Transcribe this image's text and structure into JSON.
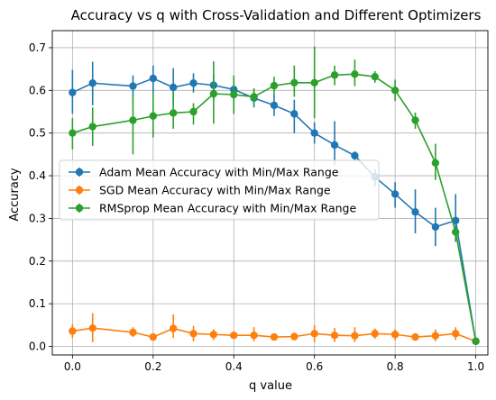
{
  "chart_data": {
    "type": "line",
    "title": "Accuracy vs q with Cross-Validation and Different Optimizers",
    "xlabel": "q value",
    "ylabel": "Accuracy",
    "xlim": [
      -0.05,
      1.03
    ],
    "ylim": [
      -0.02,
      0.74
    ],
    "xticks": [
      0.0,
      0.2,
      0.4,
      0.6,
      0.8,
      1.0
    ],
    "xtick_labels": [
      "0.0",
      "0.2",
      "0.4",
      "0.6",
      "0.8",
      "1.0"
    ],
    "yticks": [
      0.0,
      0.1,
      0.2,
      0.3,
      0.4,
      0.5,
      0.6,
      0.7
    ],
    "ytick_labels": [
      "0.0",
      "0.1",
      "0.2",
      "0.3",
      "0.4",
      "0.5",
      "0.6",
      "0.7"
    ],
    "grid": true,
    "legend_position": "center-left",
    "series": [
      {
        "name": "Adam Mean Accuracy with Min/Max Range",
        "color": "#1f77b4",
        "x": [
          0.0,
          0.05,
          0.15,
          0.2,
          0.25,
          0.3,
          0.35,
          0.4,
          0.45,
          0.5,
          0.55,
          0.6,
          0.65,
          0.7,
          0.75,
          0.8,
          0.85,
          0.9,
          0.95,
          1.0
        ],
        "y": [
          0.595,
          0.617,
          0.61,
          0.628,
          0.607,
          0.617,
          0.612,
          0.602,
          0.582,
          0.565,
          0.545,
          0.5,
          0.472,
          0.447,
          0.397,
          0.357,
          0.315,
          0.28,
          0.295,
          0.012
        ],
        "y_min": [
          0.545,
          0.565,
          0.585,
          0.595,
          0.565,
          0.595,
          0.58,
          0.565,
          0.56,
          0.54,
          0.5,
          0.475,
          0.425,
          0.435,
          0.375,
          0.325,
          0.265,
          0.235,
          0.245,
          0.008
        ],
        "y_max": [
          0.648,
          0.667,
          0.635,
          0.658,
          0.652,
          0.64,
          0.638,
          0.612,
          0.598,
          0.59,
          0.578,
          0.525,
          0.528,
          0.457,
          0.415,
          0.385,
          0.368,
          0.325,
          0.357,
          0.016
        ]
      },
      {
        "name": "SGD Mean Accuracy with Min/Max Range",
        "color": "#ff7f0e",
        "x": [
          0.0,
          0.05,
          0.15,
          0.2,
          0.25,
          0.3,
          0.35,
          0.4,
          0.45,
          0.5,
          0.55,
          0.6,
          0.65,
          0.7,
          0.75,
          0.8,
          0.85,
          0.9,
          0.95,
          1.0
        ],
        "y": [
          0.036,
          0.043,
          0.033,
          0.022,
          0.042,
          0.03,
          0.028,
          0.026,
          0.026,
          0.022,
          0.023,
          0.03,
          0.026,
          0.025,
          0.03,
          0.028,
          0.022,
          0.025,
          0.03,
          0.012
        ],
        "y_min": [
          0.02,
          0.01,
          0.022,
          0.015,
          0.02,
          0.012,
          0.015,
          0.018,
          0.012,
          0.018,
          0.016,
          0.01,
          0.01,
          0.01,
          0.018,
          0.015,
          0.015,
          0.012,
          0.015,
          0.008
        ],
        "y_max": [
          0.052,
          0.078,
          0.045,
          0.03,
          0.075,
          0.048,
          0.04,
          0.034,
          0.045,
          0.027,
          0.032,
          0.05,
          0.043,
          0.045,
          0.042,
          0.04,
          0.028,
          0.04,
          0.045,
          0.016
        ]
      },
      {
        "name": "RMSprop Mean Accuracy with Min/Max Range",
        "color": "#2ca02c",
        "x": [
          0.0,
          0.05,
          0.15,
          0.2,
          0.25,
          0.3,
          0.35,
          0.4,
          0.45,
          0.5,
          0.55,
          0.6,
          0.65,
          0.7,
          0.75,
          0.8,
          0.85,
          0.9,
          0.95,
          1.0
        ],
        "y": [
          0.5,
          0.515,
          0.53,
          0.54,
          0.547,
          0.55,
          0.592,
          0.59,
          0.585,
          0.611,
          0.618,
          0.618,
          0.636,
          0.638,
          0.632,
          0.6,
          0.53,
          0.43,
          0.268,
          0.012
        ],
        "y_min": [
          0.462,
          0.47,
          0.45,
          0.49,
          0.51,
          0.52,
          0.522,
          0.545,
          0.565,
          0.59,
          0.585,
          0.535,
          0.612,
          0.61,
          0.618,
          0.575,
          0.51,
          0.39,
          0.245,
          0.008
        ],
        "y_max": [
          0.535,
          0.56,
          0.59,
          0.595,
          0.595,
          0.57,
          0.668,
          0.635,
          0.605,
          0.632,
          0.658,
          0.703,
          0.658,
          0.672,
          0.645,
          0.625,
          0.548,
          0.475,
          0.28,
          0.016
        ]
      }
    ]
  }
}
